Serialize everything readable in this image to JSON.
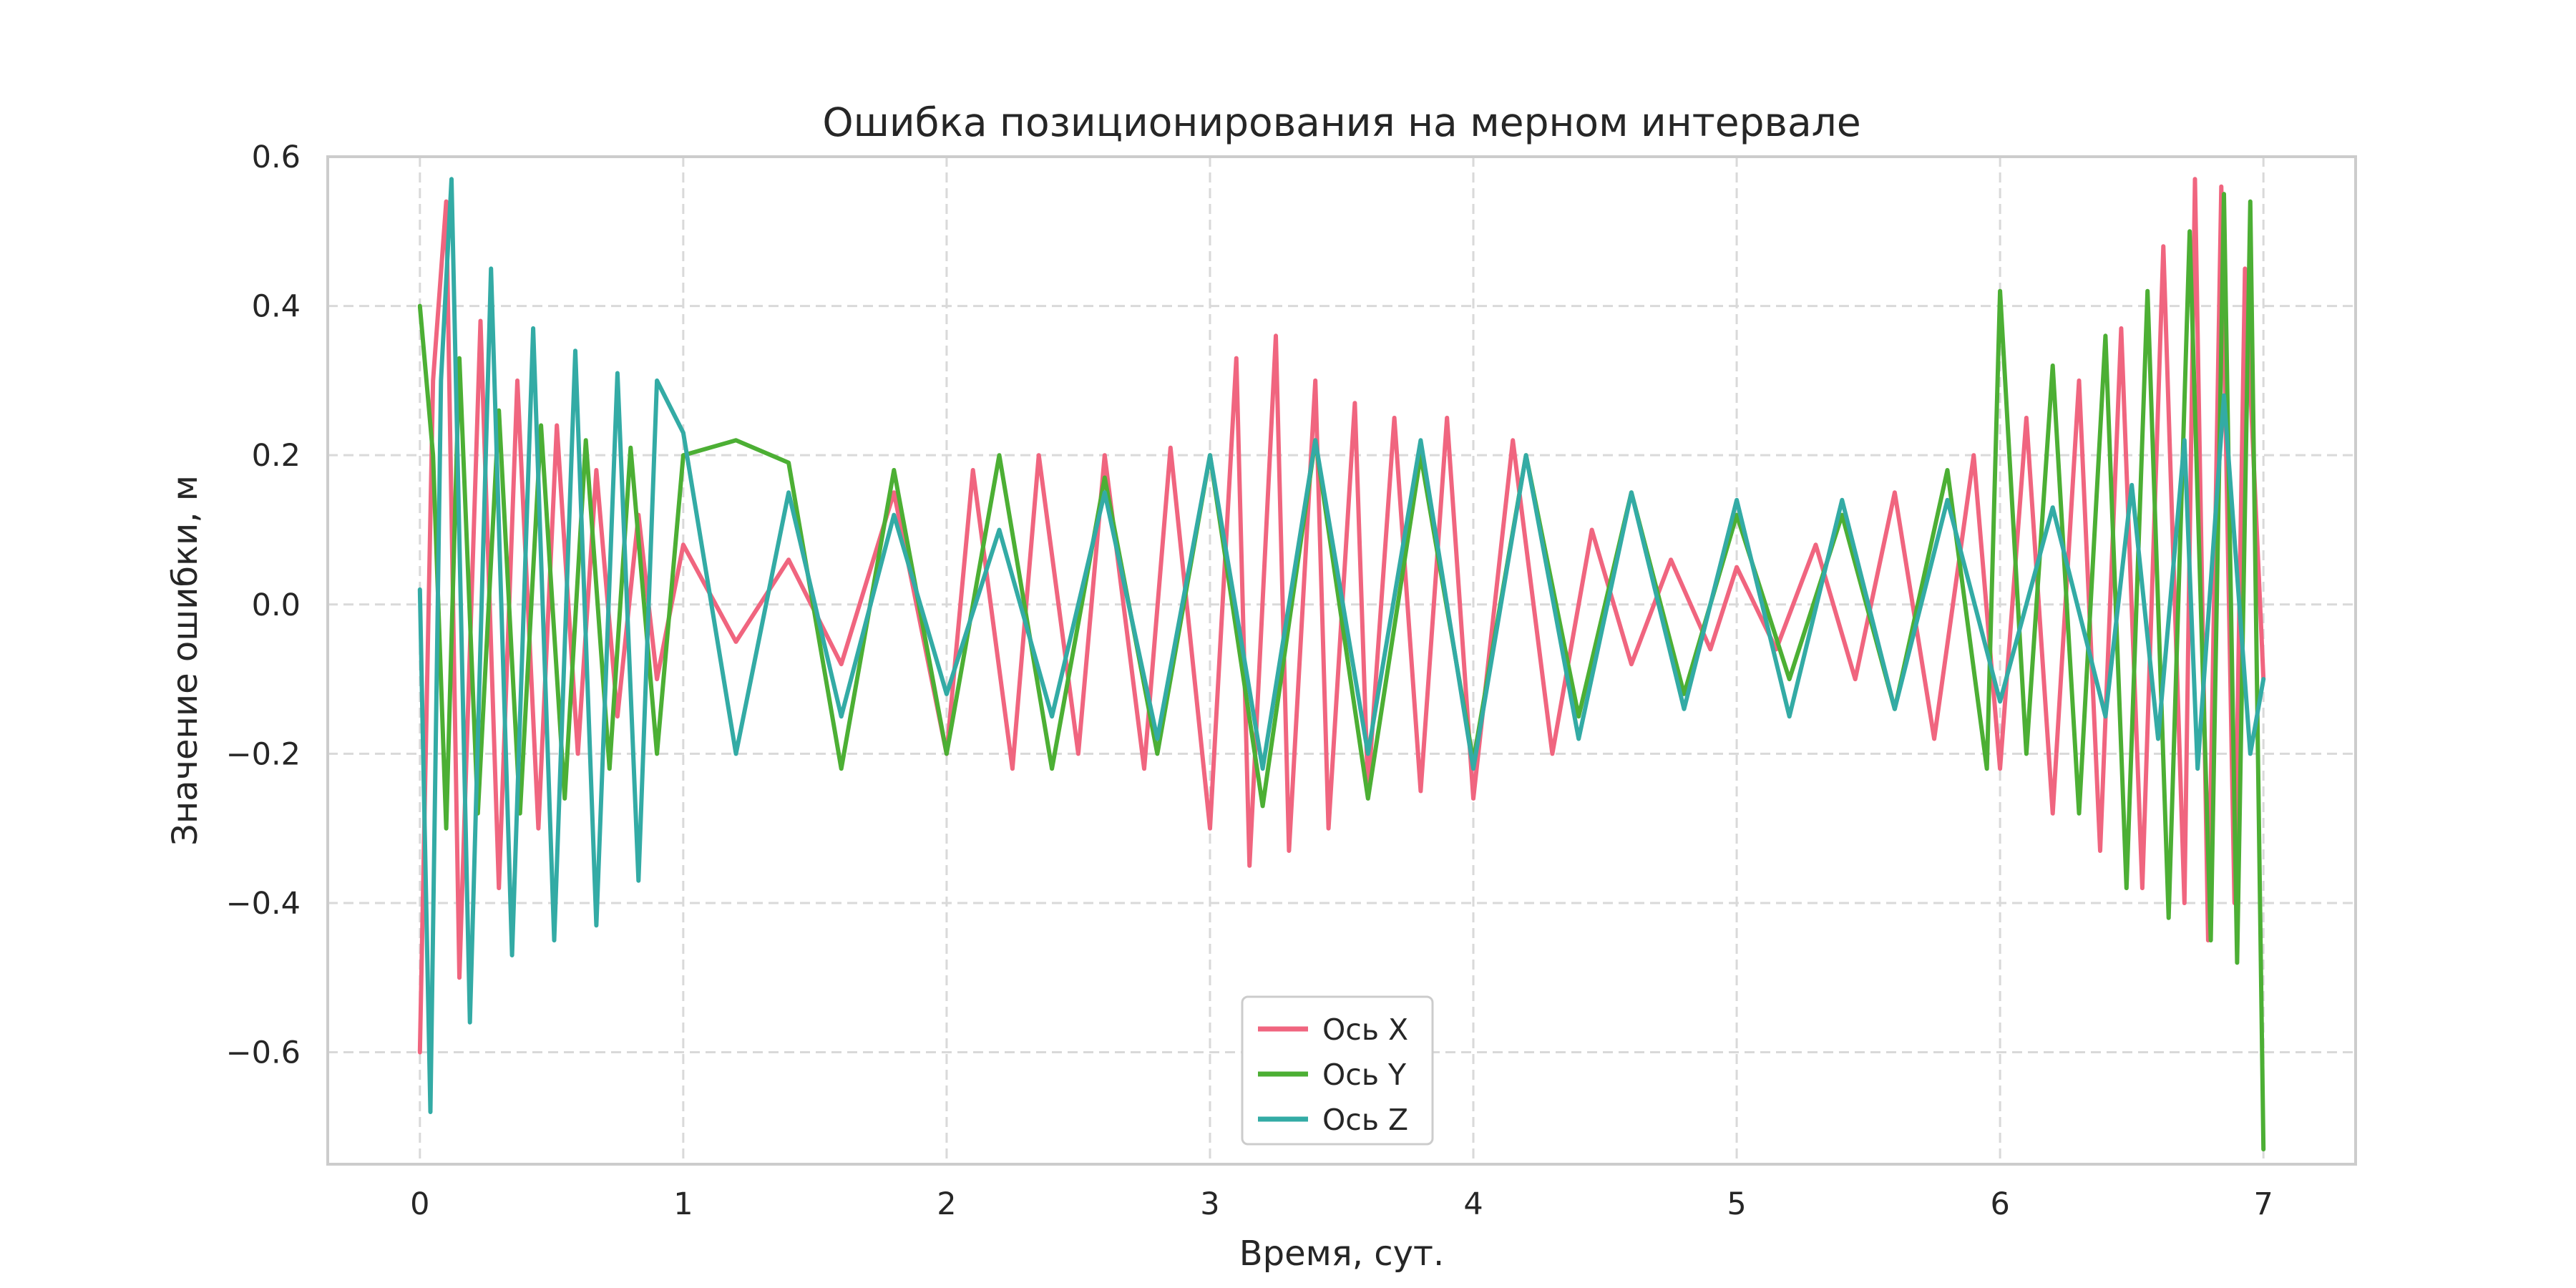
{
  "chart_data": {
    "type": "line",
    "title": "Ошибка позиционирования на мерном интервале",
    "xlabel": "Время, сут.",
    "ylabel": "Значение ошибки, м",
    "xlim": [
      -0.35,
      7.35
    ],
    "ylim": [
      -0.75,
      0.6
    ],
    "xticks": [
      0,
      1,
      2,
      3,
      4,
      5,
      6,
      7
    ],
    "xtick_labels": [
      "0",
      "1",
      "2",
      "3",
      "4",
      "5",
      "6",
      "7"
    ],
    "yticks": [
      0.6,
      0.4,
      0.2,
      0.0,
      -0.2,
      -0.4,
      -0.6
    ],
    "ytick_labels": [
      "0.6",
      "0.4",
      "0.2",
      "0.0",
      "−0.2",
      "−0.4",
      "−0.6"
    ],
    "grid": true,
    "legend_position": "lower-center",
    "series": [
      {
        "name": "Ось X",
        "color": "#f0657f",
        "x": [
          0,
          0.05,
          0.1,
          0.15,
          0.23,
          0.3,
          0.37,
          0.45,
          0.52,
          0.6,
          0.67,
          0.75,
          0.83,
          0.9,
          1.0,
          1.2,
          1.4,
          1.6,
          1.8,
          2.0,
          2.1,
          2.25,
          2.35,
          2.5,
          2.6,
          2.75,
          2.85,
          3.0,
          3.1,
          3.15,
          3.25,
          3.3,
          3.4,
          3.45,
          3.55,
          3.6,
          3.7,
          3.8,
          3.9,
          4.0,
          4.15,
          4.3,
          4.45,
          4.6,
          4.75,
          4.9,
          5.0,
          5.15,
          5.3,
          5.45,
          5.6,
          5.75,
          5.9,
          6.0,
          6.1,
          6.2,
          6.3,
          6.38,
          6.46,
          6.54,
          6.62,
          6.7,
          6.74,
          6.79,
          6.84,
          6.89,
          6.93,
          7.0
        ],
        "y": [
          -0.6,
          0.3,
          0.54,
          -0.5,
          0.38,
          -0.38,
          0.3,
          -0.3,
          0.24,
          -0.2,
          0.18,
          -0.15,
          0.12,
          -0.1,
          0.08,
          -0.05,
          0.06,
          -0.08,
          0.15,
          -0.2,
          0.18,
          -0.22,
          0.2,
          -0.2,
          0.2,
          -0.22,
          0.21,
          -0.3,
          0.33,
          -0.35,
          0.36,
          -0.33,
          0.3,
          -0.3,
          0.27,
          -0.25,
          0.25,
          -0.25,
          0.25,
          -0.26,
          0.22,
          -0.2,
          0.1,
          -0.08,
          0.06,
          -0.06,
          0.05,
          -0.06,
          0.08,
          -0.1,
          0.15,
          -0.18,
          0.2,
          -0.22,
          0.25,
          -0.28,
          0.3,
          -0.33,
          0.37,
          -0.38,
          0.48,
          -0.4,
          0.57,
          -0.45,
          0.56,
          -0.4,
          0.45,
          -0.1
        ]
      },
      {
        "name": "Ось Y",
        "color": "#4caf34",
        "x": [
          0,
          0.05,
          0.1,
          0.15,
          0.22,
          0.3,
          0.38,
          0.46,
          0.55,
          0.63,
          0.72,
          0.8,
          0.9,
          1.0,
          1.2,
          1.4,
          1.6,
          1.8,
          2.0,
          2.2,
          2.4,
          2.6,
          2.8,
          3.0,
          3.2,
          3.4,
          3.6,
          3.8,
          4.0,
          4.2,
          4.4,
          4.6,
          4.8,
          5.0,
          5.2,
          5.4,
          5.6,
          5.8,
          5.95,
          6.0,
          6.1,
          6.2,
          6.3,
          6.4,
          6.48,
          6.56,
          6.64,
          6.72,
          6.8,
          6.85,
          6.9,
          6.95,
          7.0
        ],
        "y": [
          0.4,
          0.2,
          -0.3,
          0.33,
          -0.28,
          0.26,
          -0.28,
          0.24,
          -0.26,
          0.22,
          -0.22,
          0.21,
          -0.2,
          0.2,
          0.22,
          0.19,
          -0.22,
          0.18,
          -0.2,
          0.2,
          -0.22,
          0.17,
          -0.2,
          0.2,
          -0.27,
          0.22,
          -0.26,
          0.2,
          -0.21,
          0.2,
          -0.15,
          0.15,
          -0.12,
          0.12,
          -0.1,
          0.12,
          -0.14,
          0.18,
          -0.22,
          0.42,
          -0.2,
          0.32,
          -0.28,
          0.36,
          -0.38,
          0.42,
          -0.42,
          0.5,
          -0.45,
          0.55,
          -0.48,
          0.54,
          -0.73
        ]
      },
      {
        "name": "Ось Z",
        "color": "#33aba5",
        "x": [
          0,
          0.04,
          0.08,
          0.12,
          0.19,
          0.27,
          0.35,
          0.43,
          0.51,
          0.59,
          0.67,
          0.75,
          0.83,
          0.9,
          1.0,
          1.2,
          1.4,
          1.6,
          1.8,
          2.0,
          2.2,
          2.4,
          2.6,
          2.8,
          3.0,
          3.2,
          3.4,
          3.6,
          3.8,
          4.0,
          4.2,
          4.4,
          4.6,
          4.8,
          5.0,
          5.2,
          5.4,
          5.6,
          5.8,
          6.0,
          6.2,
          6.4,
          6.5,
          6.6,
          6.7,
          6.75,
          6.85,
          6.95,
          7.0
        ],
        "y": [
          0.02,
          -0.68,
          0.3,
          0.57,
          -0.56,
          0.45,
          -0.47,
          0.37,
          -0.45,
          0.34,
          -0.43,
          0.31,
          -0.37,
          0.3,
          0.23,
          -0.2,
          0.15,
          -0.15,
          0.12,
          -0.12,
          0.1,
          -0.15,
          0.15,
          -0.18,
          0.2,
          -0.22,
          0.22,
          -0.2,
          0.22,
          -0.22,
          0.2,
          -0.18,
          0.15,
          -0.14,
          0.14,
          -0.15,
          0.14,
          -0.14,
          0.14,
          -0.13,
          0.13,
          -0.15,
          0.16,
          -0.18,
          0.22,
          -0.22,
          0.28,
          -0.2,
          -0.1
        ]
      }
    ]
  }
}
